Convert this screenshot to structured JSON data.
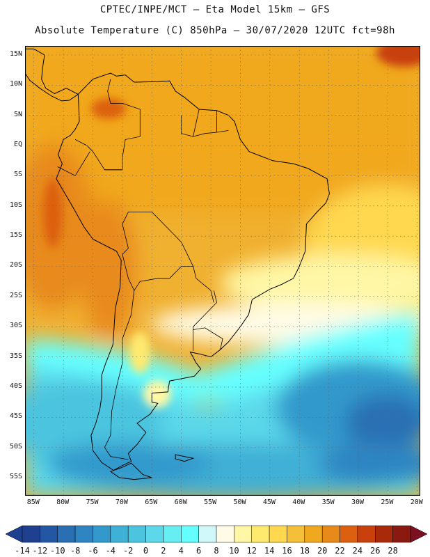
{
  "header": {
    "line1": "CPTEC/INPE/MCT –  Eta Model 15km – GFS",
    "line2": "Absolute Temperature (C) 850hPa – 30/07/2020 12UTC fct=98h"
  },
  "map": {
    "lat_ticks": [
      "15N",
      "10N",
      "5N",
      "EQ",
      "5S",
      "10S",
      "15S",
      "20S",
      "25S",
      "30S",
      "35S",
      "40S",
      "45S",
      "50S",
      "55S"
    ],
    "lon_ticks": [
      "85W",
      "80W",
      "75W",
      "70W",
      "65W",
      "60W",
      "55W",
      "50W",
      "45W",
      "40W",
      "35W",
      "30W",
      "25W",
      "20W"
    ],
    "lat_values": [
      15,
      10,
      5,
      0,
      -5,
      -10,
      -15,
      -20,
      -25,
      -30,
      -35,
      -40,
      -45,
      -50,
      -55
    ],
    "lon_values": [
      -85,
      -80,
      -75,
      -70,
      -65,
      -60,
      -55,
      -50,
      -45,
      -40,
      -35,
      -30,
      -25,
      -20
    ],
    "lat_range": [
      -58,
      16.5
    ],
    "lon_range": [
      -86.5,
      -19.5
    ],
    "grid": true,
    "projection": "lat-lon"
  },
  "colorbar": {
    "labels": [
      "-14",
      "-12",
      "-10",
      "-8",
      "-6",
      "-4",
      "-2",
      "0",
      "2",
      "4",
      "6",
      "8",
      "10",
      "12",
      "14",
      "16",
      "18",
      "20",
      "22",
      "24",
      "26",
      "28"
    ],
    "colors": [
      "#1f3f8f",
      "#2457a3",
      "#2b6fb3",
      "#2f85c2",
      "#3399cc",
      "#3fb0d6",
      "#4cc4df",
      "#5cd8ea",
      "#66eef2",
      "#66ffff",
      "#d0f8f8",
      "#fffbe6",
      "#fff7a6",
      "#ffea70",
      "#ffd850",
      "#f4c03a",
      "#f0a81e",
      "#e88a1a",
      "#dc6010",
      "#c8400c",
      "#a82a0a",
      "#8a1a10"
    ]
  }
}
